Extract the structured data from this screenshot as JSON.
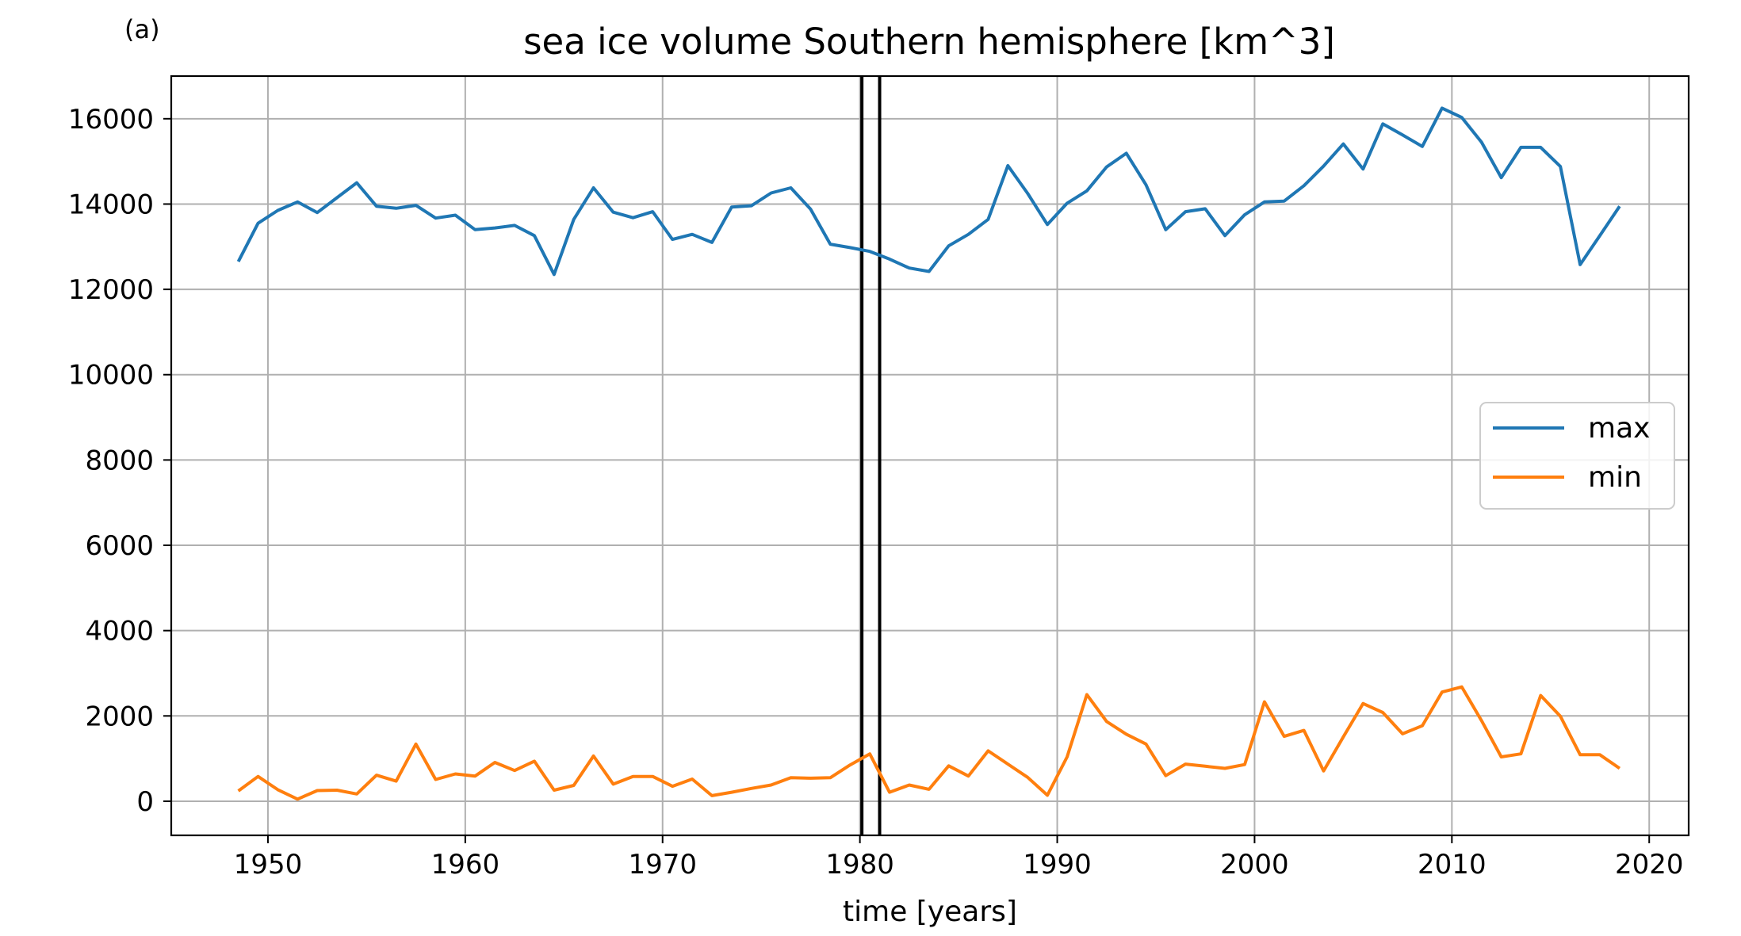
{
  "panel_label": "(a)",
  "chart_data": {
    "type": "line",
    "title": "sea ice volume Southern hemisphere [km^3]",
    "xlabel": "time [years]",
    "ylabel": "",
    "xlim": [
      1945.1,
      1922.0
    ],
    "ylim": [
      -800,
      17000
    ],
    "xticks": [
      1950,
      1960,
      1970,
      1980,
      1990,
      2000,
      2010,
      2020
    ],
    "yticks": [
      0,
      2000,
      4000,
      6000,
      8000,
      10000,
      12000,
      14000,
      16000
    ],
    "grid": true,
    "legend_position": "center-right",
    "vertical_lines": [
      1980.1,
      1981.0
    ],
    "x": [
      1948.5,
      1949.5,
      1950.5,
      1951.5,
      1952.5,
      1953.5,
      1954.5,
      1955.5,
      1956.5,
      1957.5,
      1958.5,
      1959.5,
      1960.5,
      1961.5,
      1962.5,
      1963.5,
      1964.5,
      1965.5,
      1966.5,
      1967.5,
      1968.5,
      1969.5,
      1970.5,
      1971.5,
      1972.5,
      1973.5,
      1974.5,
      1975.5,
      1976.5,
      1977.5,
      1978.5,
      1979.5,
      1980.5,
      1981.5,
      1982.5,
      1983.5,
      1984.5,
      1985.5,
      1986.5,
      1987.5,
      1988.5,
      1989.5,
      1990.5,
      1991.5,
      1992.5,
      1993.5,
      1994.5,
      1995.5,
      1996.5,
      1997.5,
      1998.5,
      1999.5,
      2000.5,
      2001.5,
      2002.5,
      2003.5,
      2004.5,
      2005.5,
      2006.5,
      2007.5,
      2008.5,
      2009.5,
      2010.5,
      2011.5,
      2012.5,
      2013.5,
      2014.5,
      2015.5,
      2016.5,
      2017.5,
      2018.5
    ],
    "series": [
      {
        "name": "max",
        "color": "#1f77b4",
        "values": [
          12650,
          13550,
          13850,
          14050,
          13800,
          14150,
          14500,
          13950,
          13900,
          13970,
          13670,
          13740,
          13400,
          13440,
          13500,
          13260,
          12350,
          13640,
          14380,
          13810,
          13680,
          13820,
          13170,
          13290,
          13100,
          13930,
          13960,
          14260,
          14380,
          13880,
          13060,
          12980,
          12890,
          12710,
          12500,
          12420,
          13020,
          13290,
          13640,
          14900,
          14250,
          13520,
          14020,
          14310,
          14870,
          15190,
          14450,
          13400,
          13820,
          13890,
          13260,
          13750,
          14050,
          14070,
          14430,
          14890,
          15410,
          14820,
          15880,
          15620,
          15350,
          16250,
          16030,
          15450,
          14620,
          15330,
          15330,
          14880,
          12580,
          13260,
          13950
        ]
      },
      {
        "name": "min",
        "color": "#ff7f0e",
        "values": [
          240,
          580,
          270,
          50,
          250,
          260,
          170,
          610,
          470,
          1340,
          510,
          640,
          590,
          910,
          720,
          940,
          260,
          370,
          1060,
          400,
          580,
          580,
          350,
          520,
          130,
          210,
          300,
          380,
          550,
          540,
          550,
          850,
          1110,
          210,
          380,
          280,
          830,
          590,
          1180,
          870,
          560,
          140,
          1040,
          2500,
          1870,
          1570,
          1340,
          600,
          870,
          820,
          770,
          860,
          2330,
          1520,
          1660,
          710,
          1510,
          2290,
          2080,
          1580,
          1770,
          2560,
          2680,
          1890,
          1040,
          1110,
          2480,
          1990,
          1090,
          1090,
          770
        ]
      }
    ]
  }
}
